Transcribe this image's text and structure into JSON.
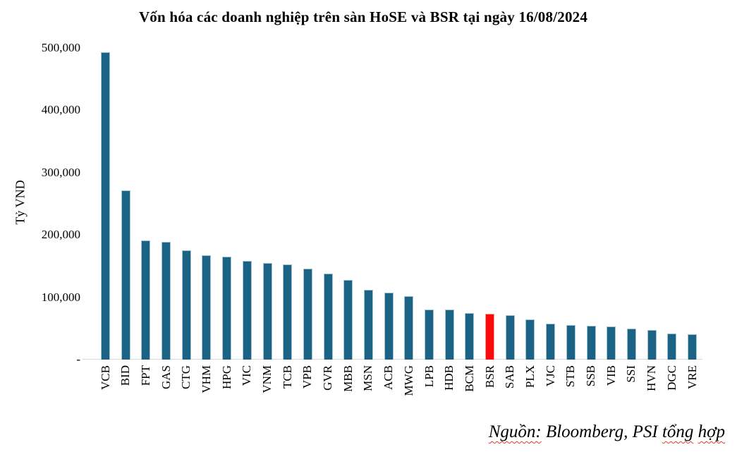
{
  "title": "Vốn hóa các doanh nghiệp trên sàn HoSE và BSR tại ngày 16/08/2024",
  "y_axis": {
    "label": "Tỷ VND",
    "ticks": [
      {
        "label": "500,000",
        "value": 500000
      },
      {
        "label": "400,000",
        "value": 400000
      },
      {
        "label": "300,000",
        "value": 300000
      },
      {
        "label": "200,000",
        "value": 200000
      },
      {
        "label": "100,000",
        "value": 100000
      },
      {
        "label": "-",
        "value": 0
      }
    ]
  },
  "source_note": {
    "parts": [
      {
        "text": "Nguồn:",
        "squiggle": true
      },
      {
        "text": " Bloomberg, PSI ",
        "squiggle": false
      },
      {
        "text": "tổng",
        "squiggle": true
      },
      {
        "text": " ",
        "squiggle": false
      },
      {
        "text": "hợp",
        "squiggle": true
      }
    ]
  },
  "chart_data": {
    "type": "bar",
    "title": "Vốn hóa các doanh nghiệp trên sàn HoSE và BSR tại ngày 16/08/2024",
    "xlabel": "",
    "ylabel": "Tỷ VND",
    "ylim": [
      0,
      500000
    ],
    "grid": false,
    "legend": false,
    "categories": [
      "VCB",
      "BID",
      "FPT",
      "GAS",
      "CTG",
      "VHM",
      "HPG",
      "VIC",
      "VNM",
      "TCB",
      "VPB",
      "GVR",
      "MBB",
      "MSN",
      "ACB",
      "MWG",
      "LPB",
      "HDB",
      "BCM",
      "BSR",
      "SAB",
      "PLX",
      "VJC",
      "STB",
      "SSB",
      "VIB",
      "SSI",
      "HVN",
      "DGC",
      "VRE"
    ],
    "values": [
      493000,
      271000,
      191000,
      189000,
      175000,
      167000,
      165000,
      158000,
      155000,
      153000,
      146000,
      138000,
      128000,
      112000,
      108000,
      102000,
      80000,
      80000,
      75000,
      74000,
      71000,
      64000,
      58000,
      55000,
      54000,
      53000,
      50000,
      47000,
      42000,
      41000
    ],
    "highlighted_category": "BSR",
    "highlight_index": 19
  },
  "colors": {
    "bar_fill": "#1A6384",
    "bar_border": "#A5C4D4",
    "highlight_fill": "#FA0A0A",
    "highlight_border": "#FF9C9C",
    "baseline": "#D8D8D8",
    "text": "#000000",
    "squiggle": "#E23B2E"
  }
}
